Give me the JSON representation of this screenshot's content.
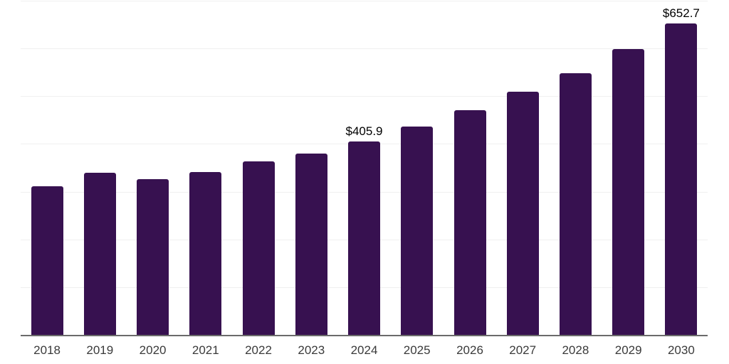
{
  "chart_data": {
    "type": "bar",
    "title": "",
    "categories": [
      "2018",
      "2019",
      "2020",
      "2021",
      "2022",
      "2023",
      "2024",
      "2025",
      "2026",
      "2027",
      "2028",
      "2029",
      "2030"
    ],
    "values": [
      312,
      339,
      326,
      341,
      364,
      380,
      405.9,
      436,
      471,
      509,
      548,
      599,
      652.7
    ],
    "data_labels": [
      {
        "category": "2024",
        "text": "$405.9"
      },
      {
        "category": "2030",
        "text": "$652.7"
      }
    ],
    "xlabel": "",
    "ylabel": "",
    "ylim": [
      0,
      700
    ],
    "gridline_step": 100,
    "grid": "horizontal",
    "legend": "none",
    "y_tick_labels_visible": false,
    "colors": {
      "bar": "#371150",
      "gridline": "#f0f0f0",
      "axis_line": "#6b6b6b",
      "tick_label": "#3a3a3a",
      "data_label": "#000000",
      "background": "#ffffff"
    }
  }
}
